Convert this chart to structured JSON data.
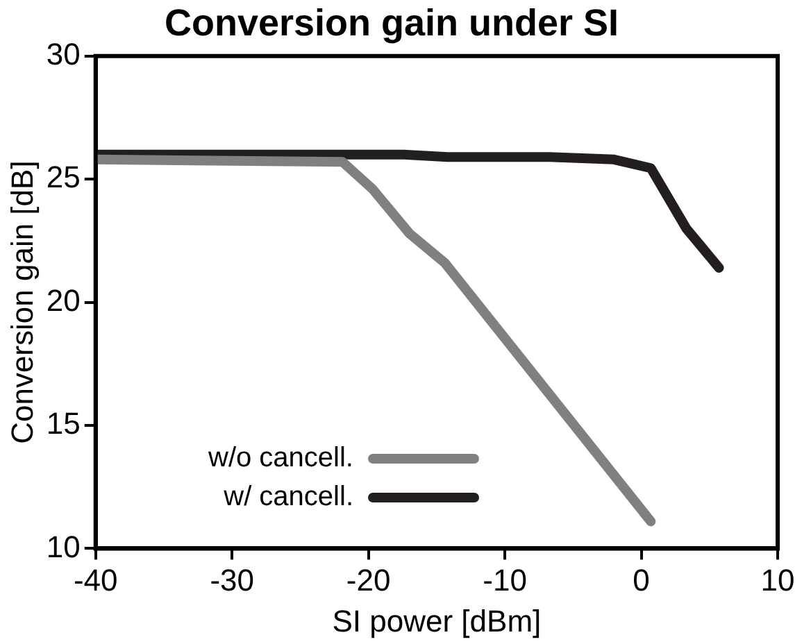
{
  "chart_data": {
    "type": "line",
    "title": "Conversion gain under SI",
    "xlabel": "SI power [dBm]",
    "ylabel": "Conversion gain [dB]",
    "xlim": [
      -40,
      10
    ],
    "xticks": [
      -40,
      -30,
      -20,
      -10,
      0,
      10
    ],
    "ylim": [
      10,
      30
    ],
    "yticks": [
      10,
      15,
      20,
      25,
      30
    ],
    "grid": false,
    "legend": "bottom left",
    "marker": "none",
    "line_style": "solid",
    "series": [
      {
        "name": "w/o cancell.",
        "color": "#808080",
        "x": [
          -40,
          -21.9,
          -19.7,
          -17,
          -14.4,
          0.7
        ],
        "values": [
          25.8,
          25.7,
          24.6,
          22.8,
          21.6,
          11.1
        ]
      },
      {
        "name": "w/ cancell.",
        "color": "#231f20",
        "x": [
          -40,
          -17.4,
          -14.2,
          -6.7,
          -2,
          0.7,
          3.3,
          5.7
        ],
        "values": [
          26,
          26,
          25.9,
          25.9,
          25.8,
          25.45,
          23,
          21.4
        ]
      }
    ]
  }
}
